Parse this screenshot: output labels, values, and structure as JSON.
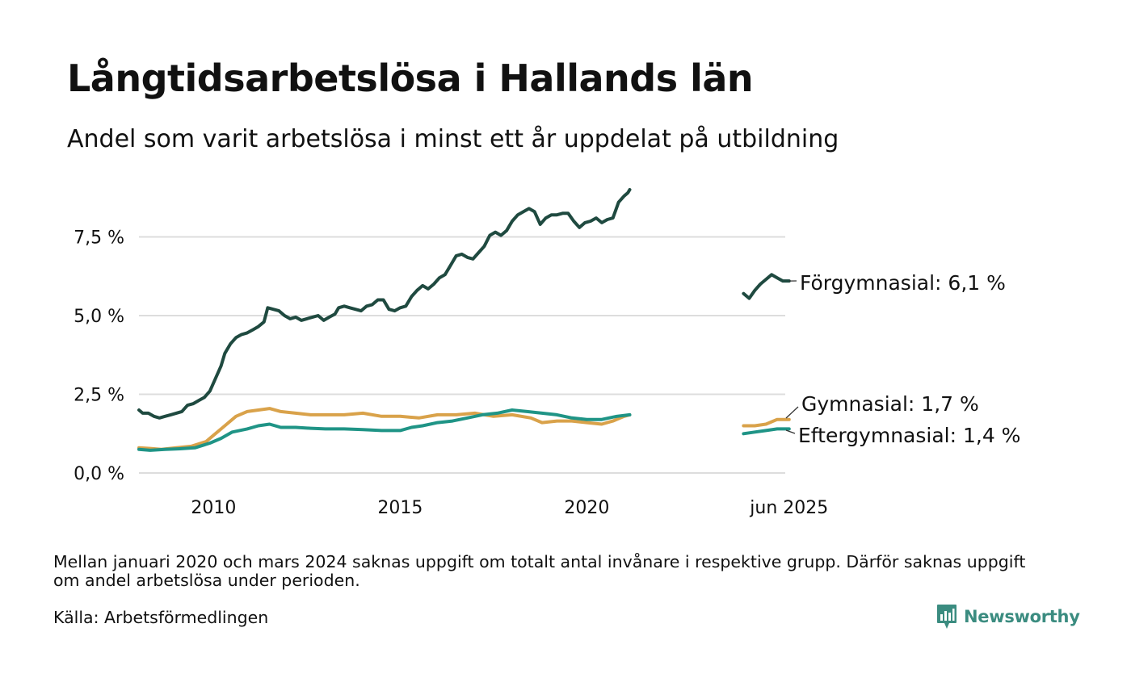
{
  "title": "Långtidsarbetslösa i Hallands län",
  "subtitle": "Andel som varit arbetslösa i minst ett år uppdelat på utbildning",
  "note": "Mellan januari 2020 och mars 2024 saknas uppgift om totalt antal invånare i respektive grupp. Därför saknas uppgift om andel arbetslösa under perioden.",
  "source": "Källa: Arbetsförmedlingen",
  "brand": {
    "name": "Newsworthy",
    "color": "#3b8c80",
    "icon": "chart-bubble-icon"
  },
  "chart_data": {
    "type": "line",
    "yticks": [
      "0,0 %",
      "2,5 %",
      "5,0 %",
      "7,5 %"
    ],
    "yticks_values": [
      0,
      2.5,
      5.0,
      7.5
    ],
    "xticks": [
      "2010",
      "2015",
      "2020",
      "jun 2025"
    ],
    "xticks_values": [
      2010.0,
      2015.0,
      2020.0,
      2025.42
    ],
    "xlim": [
      2008.0,
      2025.5
    ],
    "ylim": [
      0,
      9.0
    ],
    "grid": true,
    "series": [
      {
        "name": "Förgymnasial",
        "label": "Förgymnasial: 6,1 %",
        "color": "#1f4a40",
        "segments": [
          [
            [
              2008.0,
              2.0
            ],
            [
              2008.1,
              1.9
            ],
            [
              2008.25,
              1.9
            ],
            [
              2008.4,
              1.8
            ],
            [
              2008.55,
              1.75
            ],
            [
              2008.7,
              1.8
            ],
            [
              2008.85,
              1.85
            ],
            [
              2009.0,
              1.9
            ],
            [
              2009.15,
              1.95
            ],
            [
              2009.3,
              2.15
            ],
            [
              2009.45,
              2.2
            ],
            [
              2009.6,
              2.3
            ],
            [
              2009.75,
              2.4
            ],
            [
              2009.9,
              2.6
            ],
            [
              2010.05,
              3.0
            ],
            [
              2010.2,
              3.4
            ],
            [
              2010.3,
              3.8
            ],
            [
              2010.45,
              4.1
            ],
            [
              2010.6,
              4.3
            ],
            [
              2010.75,
              4.4
            ],
            [
              2010.9,
              4.45
            ],
            [
              2011.05,
              4.55
            ],
            [
              2011.2,
              4.65
            ],
            [
              2011.35,
              4.8
            ],
            [
              2011.45,
              5.25
            ],
            [
              2011.6,
              5.2
            ],
            [
              2011.75,
              5.15
            ],
            [
              2011.9,
              5.0
            ],
            [
              2012.05,
              4.9
            ],
            [
              2012.2,
              4.95
            ],
            [
              2012.35,
              4.85
            ],
            [
              2012.5,
              4.9
            ],
            [
              2012.65,
              4.95
            ],
            [
              2012.8,
              5.0
            ],
            [
              2012.95,
              4.85
            ],
            [
              2013.1,
              4.95
            ],
            [
              2013.25,
              5.05
            ],
            [
              2013.35,
              5.25
            ],
            [
              2013.5,
              5.3
            ],
            [
              2013.65,
              5.25
            ],
            [
              2013.8,
              5.2
            ],
            [
              2013.95,
              5.15
            ],
            [
              2014.1,
              5.3
            ],
            [
              2014.25,
              5.35
            ],
            [
              2014.4,
              5.5
            ],
            [
              2014.55,
              5.5
            ],
            [
              2014.7,
              5.2
            ],
            [
              2014.85,
              5.15
            ],
            [
              2015.0,
              5.25
            ],
            [
              2015.15,
              5.3
            ],
            [
              2015.3,
              5.6
            ],
            [
              2015.45,
              5.8
            ],
            [
              2015.6,
              5.95
            ],
            [
              2015.75,
              5.85
            ],
            [
              2015.9,
              6.0
            ],
            [
              2016.05,
              6.2
            ],
            [
              2016.2,
              6.3
            ],
            [
              2016.35,
              6.6
            ],
            [
              2016.5,
              6.9
            ],
            [
              2016.65,
              6.95
            ],
            [
              2016.8,
              6.85
            ],
            [
              2016.95,
              6.8
            ],
            [
              2017.1,
              7.0
            ],
            [
              2017.25,
              7.2
            ],
            [
              2017.4,
              7.55
            ],
            [
              2017.55,
              7.65
            ],
            [
              2017.7,
              7.55
            ],
            [
              2017.85,
              7.7
            ],
            [
              2018.0,
              8.0
            ],
            [
              2018.15,
              8.2
            ],
            [
              2018.3,
              8.3
            ],
            [
              2018.45,
              8.4
            ],
            [
              2018.6,
              8.3
            ],
            [
              2018.75,
              7.9
            ],
            [
              2018.9,
              8.1
            ],
            [
              2019.05,
              8.2
            ],
            [
              2019.2,
              8.2
            ],
            [
              2019.35,
              8.25
            ],
            [
              2019.5,
              8.25
            ],
            [
              2019.65,
              8.0
            ],
            [
              2019.8,
              7.8
            ],
            [
              2019.95,
              7.95
            ],
            [
              2020.1,
              8.0
            ],
            [
              2020.25,
              8.1
            ],
            [
              2020.4,
              7.95
            ],
            [
              2020.55,
              8.05
            ],
            [
              2020.7,
              8.1
            ],
            [
              2020.85,
              8.6
            ],
            [
              2021.0,
              8.8
            ],
            [
              2021.1,
              8.9
            ],
            [
              2021.15,
              9.0
            ]
          ],
          [
            [
              2024.2,
              5.7
            ],
            [
              2024.35,
              5.55
            ],
            [
              2024.5,
              5.8
            ],
            [
              2024.65,
              6.0
            ],
            [
              2024.8,
              6.15
            ],
            [
              2024.95,
              6.3
            ],
            [
              2025.1,
              6.2
            ],
            [
              2025.25,
              6.1
            ],
            [
              2025.42,
              6.1
            ]
          ]
        ]
      },
      {
        "name": "Gymnasial",
        "label": "Gymnasial: 1,7 %",
        "color": "#d9a24a",
        "segments": [
          [
            [
              2008.0,
              0.8
            ],
            [
              2008.3,
              0.78
            ],
            [
              2008.6,
              0.75
            ],
            [
              2009.0,
              0.8
            ],
            [
              2009.4,
              0.85
            ],
            [
              2009.8,
              1.0
            ],
            [
              2010.0,
              1.2
            ],
            [
              2010.3,
              1.5
            ],
            [
              2010.6,
              1.8
            ],
            [
              2010.9,
              1.95
            ],
            [
              2011.2,
              2.0
            ],
            [
              2011.5,
              2.05
            ],
            [
              2011.8,
              1.95
            ],
            [
              2012.2,
              1.9
            ],
            [
              2012.6,
              1.85
            ],
            [
              2013.0,
              1.85
            ],
            [
              2013.5,
              1.85
            ],
            [
              2014.0,
              1.9
            ],
            [
              2014.5,
              1.8
            ],
            [
              2015.0,
              1.8
            ],
            [
              2015.5,
              1.75
            ],
            [
              2016.0,
              1.85
            ],
            [
              2016.5,
              1.85
            ],
            [
              2017.0,
              1.9
            ],
            [
              2017.5,
              1.8
            ],
            [
              2018.0,
              1.85
            ],
            [
              2018.5,
              1.75
            ],
            [
              2018.8,
              1.6
            ],
            [
              2019.2,
              1.65
            ],
            [
              2019.6,
              1.65
            ],
            [
              2020.0,
              1.6
            ],
            [
              2020.4,
              1.55
            ],
            [
              2020.7,
              1.65
            ],
            [
              2021.0,
              1.8
            ],
            [
              2021.15,
              1.85
            ]
          ],
          [
            [
              2024.2,
              1.5
            ],
            [
              2024.5,
              1.5
            ],
            [
              2024.8,
              1.55
            ],
            [
              2025.1,
              1.7
            ],
            [
              2025.42,
              1.7
            ]
          ]
        ]
      },
      {
        "name": "Eftergymnasial",
        "label": "Eftergymnasial: 1,4 %",
        "color": "#1f9486",
        "segments": [
          [
            [
              2008.0,
              0.75
            ],
            [
              2008.3,
              0.72
            ],
            [
              2008.7,
              0.75
            ],
            [
              2009.1,
              0.77
            ],
            [
              2009.5,
              0.8
            ],
            [
              2009.9,
              0.95
            ],
            [
              2010.2,
              1.1
            ],
            [
              2010.5,
              1.3
            ],
            [
              2010.9,
              1.4
            ],
            [
              2011.2,
              1.5
            ],
            [
              2011.5,
              1.55
            ],
            [
              2011.8,
              1.45
            ],
            [
              2012.2,
              1.45
            ],
            [
              2012.6,
              1.42
            ],
            [
              2013.0,
              1.4
            ],
            [
              2013.5,
              1.4
            ],
            [
              2014.0,
              1.38
            ],
            [
              2014.5,
              1.35
            ],
            [
              2015.0,
              1.35
            ],
            [
              2015.3,
              1.45
            ],
            [
              2015.6,
              1.5
            ],
            [
              2016.0,
              1.6
            ],
            [
              2016.4,
              1.65
            ],
            [
              2016.8,
              1.75
            ],
            [
              2017.2,
              1.85
            ],
            [
              2017.6,
              1.9
            ],
            [
              2018.0,
              2.0
            ],
            [
              2018.4,
              1.95
            ],
            [
              2018.8,
              1.9
            ],
            [
              2019.2,
              1.85
            ],
            [
              2019.6,
              1.75
            ],
            [
              2020.0,
              1.7
            ],
            [
              2020.4,
              1.7
            ],
            [
              2020.8,
              1.8
            ],
            [
              2021.15,
              1.85
            ]
          ],
          [
            [
              2024.2,
              1.25
            ],
            [
              2024.5,
              1.3
            ],
            [
              2024.8,
              1.35
            ],
            [
              2025.1,
              1.4
            ],
            [
              2025.42,
              1.4
            ]
          ]
        ]
      }
    ]
  }
}
